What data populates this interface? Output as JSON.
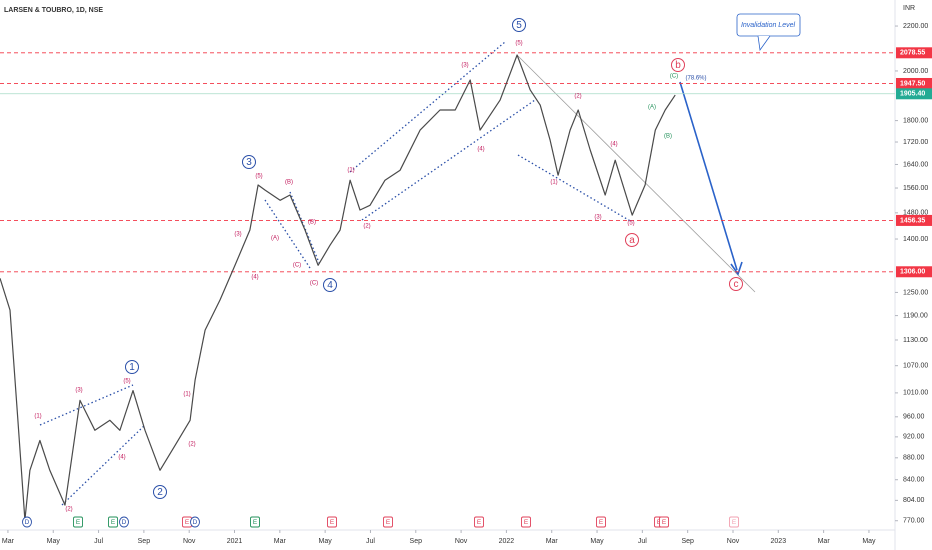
{
  "chart_data": {
    "type": "line",
    "title": "LARSEN & TOUBRO, 1D, NSE",
    "currency": "INR",
    "note": "Invalidation Level",
    "log_scale": true,
    "ylim": [
      755,
      2325
    ],
    "xlim": [
      -0.35,
      39.15
    ],
    "yticks": [
      {
        "value": 770,
        "label": "770.00"
      },
      {
        "value": 804,
        "label": "804.00"
      },
      {
        "value": 840,
        "label": "840.00"
      },
      {
        "value": 880,
        "label": "880.00"
      },
      {
        "value": 920,
        "label": "920.00"
      },
      {
        "value": 960,
        "label": "960.00"
      },
      {
        "value": 1010,
        "label": "1010.00"
      },
      {
        "value": 1070,
        "label": "1070.00"
      },
      {
        "value": 1130,
        "label": "1130.00"
      },
      {
        "value": 1190,
        "label": "1190.00"
      },
      {
        "value": 1250,
        "label": "1250.00"
      },
      {
        "value": 1400,
        "label": "1400.00"
      },
      {
        "value": 1480,
        "label": "1480.00"
      },
      {
        "value": 1560,
        "label": "1560.00"
      },
      {
        "value": 1640,
        "label": "1640.00"
      },
      {
        "value": 1720,
        "label": "1720.00"
      },
      {
        "value": 1800,
        "label": "1800.00"
      },
      {
        "value": 2000,
        "label": "2000.00"
      },
      {
        "value": 2200,
        "label": "2200.00"
      }
    ],
    "xticks": [
      {
        "value": 0,
        "label": "Mar"
      },
      {
        "value": 2,
        "label": "May"
      },
      {
        "value": 4,
        "label": "Jul"
      },
      {
        "value": 6,
        "label": "Sep"
      },
      {
        "value": 8,
        "label": "Nov"
      },
      {
        "value": 10,
        "label": "2021"
      },
      {
        "value": 12,
        "label": "Mar"
      },
      {
        "value": 14,
        "label": "May"
      },
      {
        "value": 16,
        "label": "Jul"
      },
      {
        "value": 18,
        "label": "Sep"
      },
      {
        "value": 20,
        "label": "Nov"
      },
      {
        "value": 22,
        "label": "2022"
      },
      {
        "value": 24,
        "label": "Mar"
      },
      {
        "value": 26,
        "label": "May"
      },
      {
        "value": 28,
        "label": "Jul"
      },
      {
        "value": 30,
        "label": "Sep"
      },
      {
        "value": 32,
        "label": "Nov"
      },
      {
        "value": 34,
        "label": "2023"
      },
      {
        "value": 36,
        "label": "Mar"
      },
      {
        "value": 38,
        "label": "May"
      }
    ],
    "x": [
      -0.35,
      0.09,
      0.44,
      0.75,
      0.97,
      1.41,
      1.85,
      2.52,
      3.18,
      3.84,
      4.5,
      4.94,
      5.52,
      6.05,
      6.71,
      7.37,
      8.04,
      8.26,
      8.7,
      9.36,
      10.02,
      10.68,
      11.04,
      11.35,
      12.01,
      12.45,
      13.11,
      13.69,
      14.22,
      14.66,
      15.1,
      15.54,
      15.98,
      16.64,
      17.31,
      18.19,
      19.07,
      19.74,
      20.4,
      20.84,
      21.72,
      22.47,
      23.05,
      23.49,
      23.93,
      24.28,
      24.81,
      25.17,
      25.7,
      26.36,
      26.8,
      27.55,
      28.12,
      28.57,
      29.01,
      29.45
    ],
    "series": [
      {
        "color": "#4a4a4a",
        "values": [
          1288,
          1204,
          953,
          771,
          857,
          913,
          857,
          796,
          994,
          933,
          953,
          933,
          1015,
          933,
          857,
          903,
          953,
          1038,
          1154,
          1230,
          1324,
          1427,
          1570,
          1553,
          1520,
          1537,
          1427,
          1324,
          1382,
          1427,
          1586,
          1489,
          1504,
          1586,
          1620,
          1764,
          1841,
          1841,
          1962,
          1764,
          1880,
          2069,
          1921,
          1860,
          1727,
          1603,
          1764,
          1841,
          1691,
          1537,
          1655,
          1473,
          1570,
          1764,
          1841,
          1900
        ]
      }
    ],
    "levels": [
      {
        "value": 2078.55,
        "label": "2078.55",
        "color": "#f23645"
      },
      {
        "value": 1947.5,
        "label": "1947.50",
        "color": "#f23645"
      },
      {
        "value": 1905.4,
        "label": "1905.40",
        "color": "#22ab94"
      },
      {
        "value": 1456.35,
        "label": "1456.35",
        "color": "#f23645"
      },
      {
        "value": 1306,
        "label": "1306.00",
        "color": "#f23645"
      }
    ],
    "waves": [
      {
        "text": "1",
        "color": "#2a4fa8",
        "circled": true
      },
      {
        "text": "2",
        "color": "#2a4fa8",
        "circled": true
      },
      {
        "text": "3",
        "color": "#2a4fa8",
        "circled": true
      },
      {
        "text": "4",
        "color": "#2a4fa8",
        "circled": true
      },
      {
        "text": "5",
        "color": "#2a4fa8",
        "circled": true
      },
      {
        "text": "a",
        "color": "#e0405a",
        "circled": true
      },
      {
        "text": "b",
        "color": "#e0405a",
        "circled": true
      },
      {
        "text": "c",
        "color": "#e0405a",
        "circled": true
      },
      {
        "text": "(1)",
        "color": "#c2185b"
      },
      {
        "text": "(2)",
        "color": "#c2185b"
      },
      {
        "text": "(3)",
        "color": "#c2185b"
      },
      {
        "text": "(4)",
        "color": "#c2185b"
      },
      {
        "text": "(5)",
        "color": "#c2185b"
      },
      {
        "text": "(1)",
        "color": "#c2185b"
      },
      {
        "text": "(2)",
        "color": "#c2185b"
      },
      {
        "text": "(3)",
        "color": "#c2185b"
      },
      {
        "text": "(4)",
        "color": "#c2185b"
      },
      {
        "text": "(5)",
        "color": "#c2185b"
      },
      {
        "text": "(A)",
        "color": "#c2185b"
      },
      {
        "text": "(B)",
        "color": "#c2185b"
      },
      {
        "text": "(B)",
        "color": "#c2185b"
      },
      {
        "text": "(C)",
        "color": "#c2185b"
      },
      {
        "text": "(C)",
        "color": "#c2185b"
      },
      {
        "text": "(1)",
        "color": "#c2185b"
      },
      {
        "text": "(2)",
        "color": "#c2185b"
      },
      {
        "text": "(3)",
        "color": "#c2185b"
      },
      {
        "text": "(4)",
        "color": "#c2185b"
      },
      {
        "text": "(5)",
        "color": "#c2185b"
      },
      {
        "text": "(1)",
        "color": "#c2185b"
      },
      {
        "text": "(2)",
        "color": "#c2185b"
      },
      {
        "text": "(3)",
        "color": "#c2185b"
      },
      {
        "text": "(4)",
        "color": "#c2185b"
      },
      {
        "text": "(5)",
        "color": "#c2185b"
      },
      {
        "text": "(C)",
        "color": "#22915a"
      },
      {
        "text": "(A)",
        "color": "#22915a"
      },
      {
        "text": "(B)",
        "color": "#22915a"
      },
      {
        "text": "(78.6%)",
        "color": "#2a4fa8"
      }
    ],
    "events": [
      {
        "text": "D",
        "color": "#2a4fa8"
      },
      {
        "text": "E",
        "color": "#22915a"
      },
      {
        "text": "E",
        "color": "#22915a"
      },
      {
        "text": "D",
        "color": "#2a4fa8"
      },
      {
        "text": "E",
        "color": "#e0405a"
      },
      {
        "text": "D",
        "color": "#2a4fa8"
      },
      {
        "text": "E",
        "color": "#22915a"
      },
      {
        "text": "E",
        "color": "#e0405a"
      },
      {
        "text": "E",
        "color": "#e0405a"
      },
      {
        "text": "E",
        "color": "#e0405a"
      },
      {
        "text": "E",
        "color": "#e0405a"
      },
      {
        "text": "E",
        "color": "#e0405a"
      },
      {
        "text": "E",
        "color": "#e0405a"
      },
      {
        "text": "E",
        "color": "#e0405a"
      },
      {
        "text": "E",
        "color": "#f2a0b0"
      }
    ]
  }
}
